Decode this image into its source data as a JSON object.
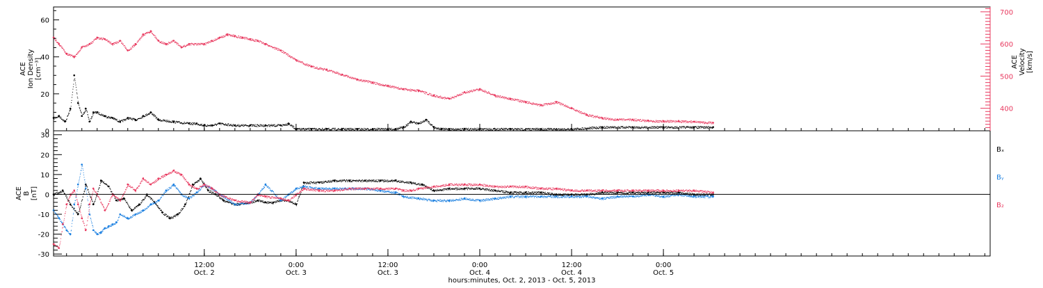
{
  "colors": {
    "black": "#000000",
    "pink": "#e8385e",
    "blue": "#1a7fe0",
    "axis": "#000000",
    "background": "#ffffff"
  },
  "x_axis": {
    "label": "hours:minutes, Oct.  2, 2013 - Oct.  5, 2013",
    "range_hours": [
      -7.7,
      114.7
    ],
    "ticks": [
      {
        "hour": 12,
        "time": "12:00",
        "date": "Oct. 2"
      },
      {
        "hour": 24,
        "time": "0:00",
        "date": "Oct. 3"
      },
      {
        "hour": 36,
        "time": "12:00",
        "date": "Oct. 3"
      },
      {
        "hour": 48,
        "time": "0:00",
        "date": "Oct. 4"
      },
      {
        "hour": 60,
        "time": "12:00",
        "date": "Oct. 4"
      },
      {
        "hour": 72,
        "time": "0:00",
        "date": "Oct. 5"
      }
    ]
  },
  "chart_data": [
    {
      "type": "scatter",
      "panel": "top",
      "left_axis": {
        "label_lines": [
          "ACE",
          "Ion Density",
          "[cm⁻³]"
        ],
        "ylim": [
          0,
          67
        ],
        "ticks": [
          0,
          20,
          40,
          60
        ]
      },
      "right_axis": {
        "label_lines": [
          "ACE",
          "Velocity",
          "[km/s]"
        ],
        "ylim": [
          330,
          715
        ],
        "ticks": [
          400,
          500,
          600,
          700
        ]
      },
      "series": [
        {
          "name": "",
          "axis": "left",
          "color": "black",
          "x": [
            -7.7,
            -7.0,
            -6.2,
            -5.5,
            -5.0,
            -4.5,
            -4.0,
            -3.5,
            -3.0,
            -2.5,
            -2.0,
            -1.0,
            0.0,
            1.0,
            2.0,
            3.0,
            4.0,
            5.0,
            6.0,
            8.0,
            10.0,
            11.0,
            12.0,
            13.0,
            14.0,
            16.0,
            18.0,
            20.0,
            22.0,
            23.0,
            24.0,
            26.0,
            28.0,
            30.0,
            32.0,
            34.0,
            36.0,
            37.0,
            38.0,
            39.0,
            40.0,
            41.0,
            42.0,
            43.0,
            44.0,
            46.0,
            48.0,
            52.0,
            56.0,
            60.0,
            64.0,
            68.0,
            72.0,
            76.0,
            78.5
          ],
          "y": [
            7,
            8,
            5,
            12,
            30,
            15,
            8,
            12,
            5,
            10,
            10,
            8,
            7,
            5,
            7,
            6,
            8,
            10,
            6,
            5,
            4,
            4,
            3,
            3,
            4,
            3,
            3,
            3,
            3,
            4,
            1,
            1,
            1,
            1,
            1,
            1,
            1,
            1,
            2,
            5,
            4,
            6,
            2,
            1,
            1,
            1,
            1,
            1,
            1,
            1,
            2,
            2,
            2,
            2,
            2
          ]
        },
        {
          "name": "",
          "axis": "right",
          "color": "pink",
          "x": [
            -7.7,
            -7.0,
            -6.0,
            -5.0,
            -4.0,
            -3.0,
            -2.0,
            -1.0,
            0.0,
            1.0,
            2.0,
            3.0,
            4.0,
            5.0,
            6.0,
            7.0,
            8.0,
            9.0,
            10.0,
            12.0,
            13.0,
            14.0,
            15.0,
            16.0,
            17.0,
            18.0,
            19.0,
            20.0,
            22.0,
            24.0,
            26.0,
            28.0,
            30.0,
            32.0,
            34.0,
            36.0,
            38.0,
            40.0,
            42.0,
            44.0,
            46.0,
            48.0,
            50.0,
            52.0,
            54.0,
            56.0,
            58.0,
            60.0,
            62.0,
            64.0,
            66.0,
            68.0,
            70.0,
            72.0,
            74.0,
            76.0,
            78.5
          ],
          "y": [
            620,
            600,
            570,
            560,
            590,
            600,
            620,
            615,
            600,
            610,
            580,
            600,
            630,
            640,
            610,
            600,
            610,
            590,
            600,
            600,
            610,
            620,
            630,
            625,
            620,
            615,
            610,
            600,
            580,
            550,
            530,
            520,
            505,
            490,
            480,
            470,
            460,
            455,
            440,
            430,
            450,
            460,
            440,
            430,
            420,
            410,
            420,
            400,
            380,
            370,
            365,
            365,
            362,
            360,
            360,
            358,
            355
          ]
        }
      ]
    },
    {
      "type": "scatter",
      "panel": "bottom",
      "left_axis": {
        "label_lines": [
          "ACE",
          "B",
          "[nT]"
        ],
        "ylim": [
          -31,
          32
        ],
        "ticks": [
          -30,
          -20,
          -10,
          0,
          10,
          20,
          30
        ]
      },
      "legend": [
        "Bₓ",
        "Bᵧ",
        "B₂"
      ],
      "series": [
        {
          "name": "Bₓ",
          "color": "black",
          "x": [
            -7.7,
            -6.5,
            -5.5,
            -4.5,
            -3.5,
            -2.5,
            -1.5,
            -0.5,
            0.5,
            1.5,
            2.5,
            3.5,
            4.5,
            5.5,
            6.5,
            7.5,
            8.5,
            9.5,
            10.5,
            11.5,
            12.5,
            13.5,
            14.5,
            16.0,
            18.0,
            19.0,
            20.0,
            21.0,
            22.0,
            23.0,
            24.0,
            25.0,
            27.0,
            29.0,
            31.0,
            33.0,
            35.0,
            37.0,
            39.0,
            40.5,
            42.0,
            44.0,
            46.0,
            48.0,
            50.0,
            52.0,
            54.0,
            56.0,
            58.0,
            60.0,
            62.0,
            64.0,
            66.0,
            68.0,
            70.0,
            72.0,
            74.0,
            76.0,
            78.5
          ],
          "y": [
            0,
            2,
            -5,
            -10,
            5,
            -5,
            7,
            4,
            -3,
            -2,
            -8,
            -5,
            0,
            -4,
            -9,
            -12,
            -10,
            -5,
            5,
            8,
            2,
            0,
            -3,
            -5,
            -4,
            -3,
            -4,
            -4,
            -3,
            -3,
            -5,
            6,
            6,
            7,
            7,
            7,
            7,
            7,
            6,
            5,
            2,
            3,
            3,
            3,
            2,
            1,
            1,
            1,
            0,
            0,
            0,
            1,
            1,
            1,
            1,
            1,
            1,
            0,
            0
          ]
        },
        {
          "name": "Bᵧ",
          "color": "blue",
          "x": [
            -7.7,
            -7.0,
            -6.5,
            -6.0,
            -5.5,
            -5.0,
            -4.5,
            -4.0,
            -3.5,
            -3.0,
            -2.5,
            -2.0,
            -1.5,
            -1.0,
            -0.5,
            0.0,
            0.5,
            1.0,
            2.0,
            3.0,
            4.0,
            5.0,
            6.0,
            7.0,
            8.0,
            9.0,
            10.0,
            11.0,
            12.0,
            13.0,
            14.0,
            16.0,
            18.0,
            19.0,
            20.0,
            22.0,
            23.0,
            24.0,
            25.0,
            27.0,
            29.0,
            31.0,
            33.0,
            35.0,
            37.0,
            38.0,
            40.0,
            42.0,
            44.0,
            46.0,
            48.0,
            50.0,
            52.0,
            54.0,
            56.0,
            58.0,
            60.0,
            62.0,
            64.0,
            66.0,
            68.0,
            70.0,
            72.0,
            74.0,
            76.0,
            78.5
          ],
          "y": [
            -8,
            -12,
            -15,
            -18,
            -20,
            -5,
            5,
            15,
            3,
            -10,
            -18,
            -20,
            -19,
            -17,
            -16,
            -15,
            -14,
            -10,
            -12,
            -10,
            -8,
            -5,
            -3,
            2,
            5,
            0,
            -2,
            1,
            5,
            3,
            0,
            -5,
            -4,
            0,
            5,
            -3,
            0,
            3,
            4,
            3,
            3,
            3,
            3,
            2,
            1,
            -1,
            -2,
            -3,
            -3,
            -2,
            -3,
            -2,
            -1,
            -1,
            -1,
            -1,
            -1,
            -1,
            -2,
            -1,
            -1,
            0,
            -1,
            0,
            -1,
            -1
          ]
        },
        {
          "name": "B₂",
          "color": "pink",
          "x": [
            -7.7,
            -7.0,
            -6.5,
            -6.0,
            -5.5,
            -5.0,
            -4.5,
            -4.0,
            -3.5,
            -3.0,
            -2.5,
            -2.0,
            -1.0,
            0.0,
            1.0,
            2.0,
            3.0,
            4.0,
            5.0,
            6.0,
            7.0,
            8.0,
            9.0,
            10.0,
            11.0,
            12.0,
            13.0,
            14.0,
            16.0,
            18.0,
            19.0,
            20.0,
            22.0,
            23.0,
            24.0,
            25.0,
            27.0,
            29.0,
            31.0,
            33.0,
            35.0,
            37.0,
            38.0,
            39.0,
            40.0,
            42.0,
            44.0,
            46.0,
            48.0,
            50.0,
            52.0,
            54.0,
            56.0,
            58.0,
            60.0,
            62.0,
            64.0,
            66.0,
            68.0,
            70.0,
            72.0,
            74.0,
            76.0,
            78.5
          ],
          "y": [
            -25,
            -27,
            -15,
            -5,
            0,
            2,
            -5,
            -12,
            -18,
            -5,
            3,
            0,
            -8,
            0,
            -3,
            5,
            2,
            8,
            5,
            8,
            10,
            12,
            10,
            5,
            3,
            5,
            3,
            0,
            -3,
            -4,
            0,
            -1,
            -2,
            -3,
            0,
            3,
            2,
            2,
            3,
            3,
            3,
            3,
            2,
            2,
            3,
            4,
            5,
            5,
            5,
            4,
            4,
            4,
            3,
            3,
            2,
            2,
            2,
            2,
            2,
            2,
            2,
            2,
            2,
            1
          ]
        }
      ]
    }
  ]
}
